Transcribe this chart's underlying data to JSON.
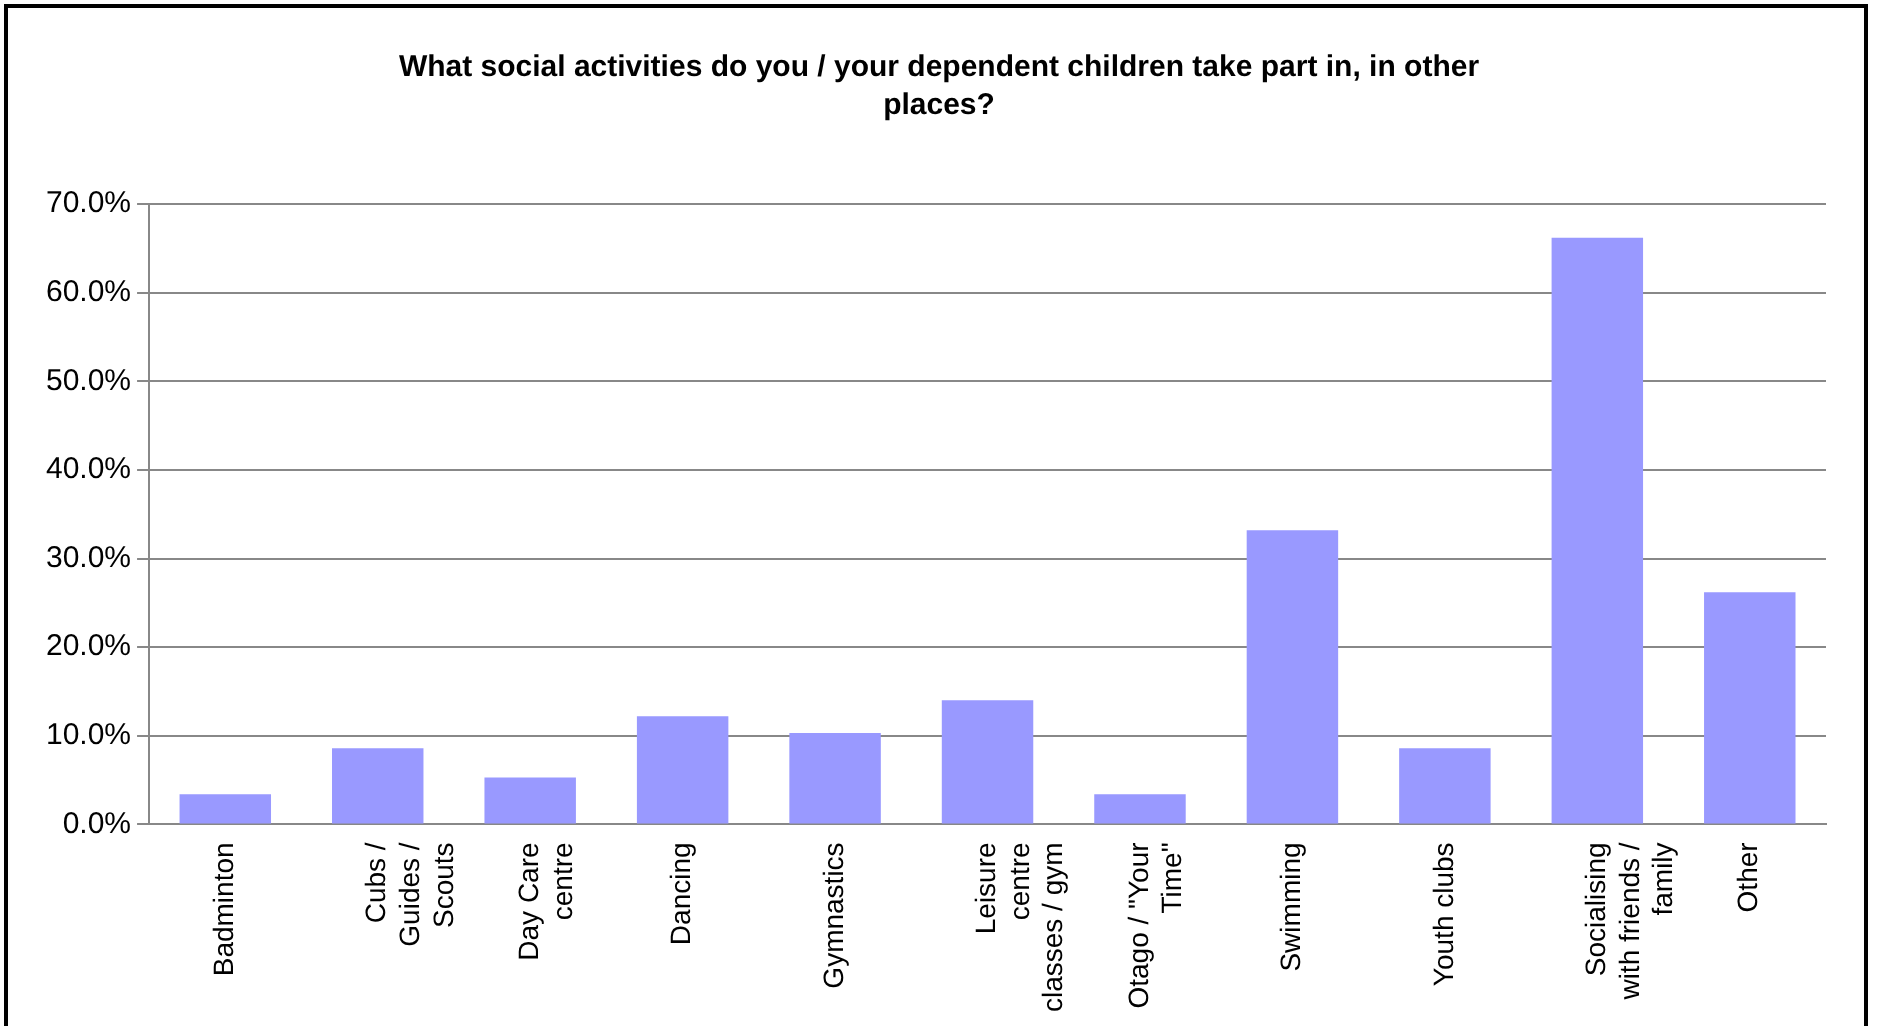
{
  "chart_data": {
    "type": "bar",
    "title": "What social activities do you / your dependent children take part in, in other places?",
    "categories": [
      "Badminton",
      "Cubs / Guides / Scouts",
      "Day Care centre",
      "Dancing",
      "Gymnastics",
      "Leisure centre classes / gym",
      "Otago / \"Your Time\"",
      "Swimming",
      "Youth clubs",
      "Socialising with friends / family",
      "Other"
    ],
    "values": [
      3.4,
      8.6,
      5.3,
      12.2,
      10.3,
      14.0,
      3.4,
      33.2,
      8.6,
      66.2,
      26.2
    ],
    "color": "#9999ff",
    "ylim": [
      0,
      70
    ],
    "yticks": [
      {
        "value": 0,
        "label": "0.0%"
      },
      {
        "value": 10,
        "label": "10.0%"
      },
      {
        "value": 20,
        "label": "20.0%"
      },
      {
        "value": 30,
        "label": "30.0%"
      },
      {
        "value": 40,
        "label": "40.0%"
      },
      {
        "value": 50,
        "label": "50.0%"
      },
      {
        "value": 60,
        "label": "60.0%"
      },
      {
        "value": 70,
        "label": "70.0%"
      }
    ],
    "grid": "y",
    "legend": false
  }
}
